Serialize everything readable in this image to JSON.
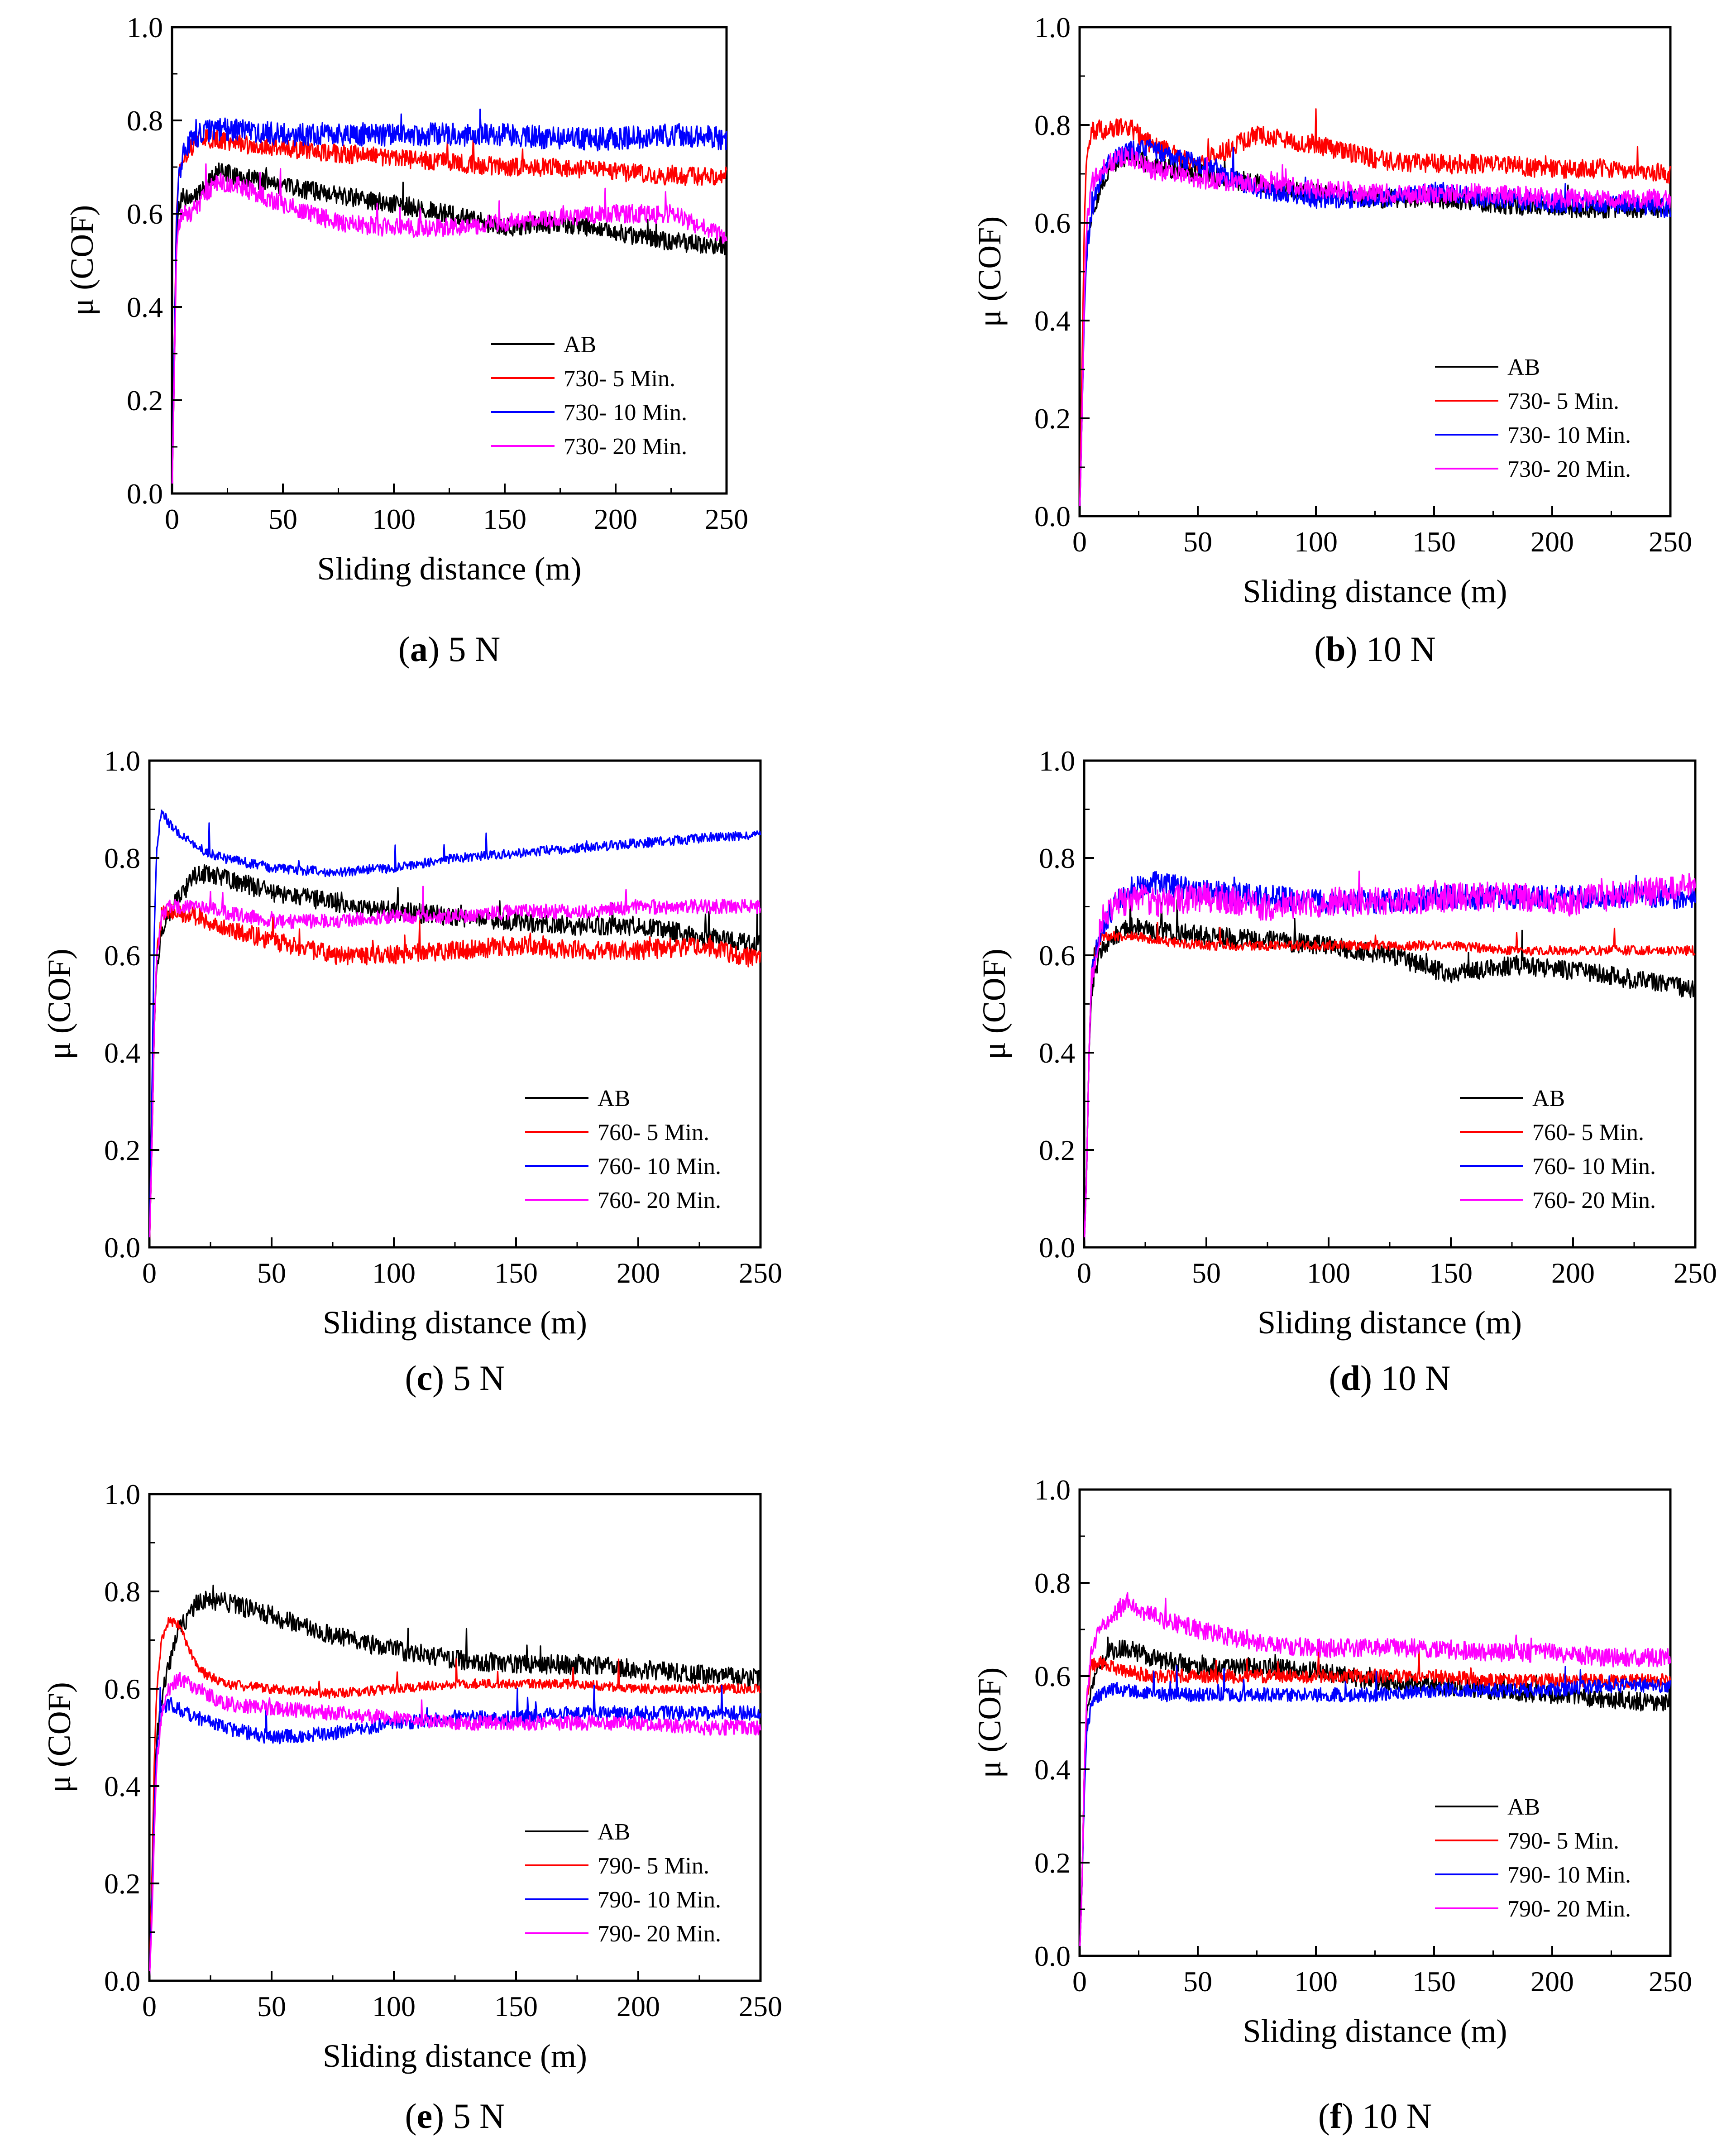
{
  "figure_title": "",
  "chart_data": [
    {
      "panel": "a",
      "caption_letter": "a",
      "caption_text": "5 N",
      "type": "line",
      "title": "",
      "xlabel": "Sliding distance (m)",
      "ylabel": "μ (COF)",
      "xlim": [
        0,
        250
      ],
      "ylim": [
        0.0,
        1.0
      ],
      "xticks": [
        "0",
        "50",
        "100",
        "150",
        "200",
        "250"
      ],
      "yticks": [
        "0.0",
        "0.2",
        "0.4",
        "0.6",
        "0.8",
        "1.0"
      ],
      "legend_position": "bottom-right",
      "x": [
        0,
        1,
        2,
        3,
        5,
        8,
        12,
        20,
        30,
        50,
        75,
        100,
        125,
        150,
        175,
        200,
        225,
        250
      ],
      "series": [
        {
          "name": "AB",
          "color": "#000000",
          "noise": 0.02,
          "values": [
            0,
            0.25,
            0.55,
            0.62,
            0.64,
            0.63,
            0.64,
            0.69,
            0.68,
            0.66,
            0.64,
            0.62,
            0.6,
            0.57,
            0.58,
            0.56,
            0.54,
            0.53
          ]
        },
        {
          "name": "730- 5 Min.",
          "color": "#ff0000",
          "noise": 0.02,
          "values": [
            0,
            0.3,
            0.6,
            0.68,
            0.72,
            0.74,
            0.76,
            0.76,
            0.75,
            0.74,
            0.73,
            0.72,
            0.71,
            0.7,
            0.7,
            0.69,
            0.68,
            0.68
          ]
        },
        {
          "name": "730- 10 Min.",
          "color": "#0000ff",
          "noise": 0.025,
          "values": [
            0,
            0.3,
            0.58,
            0.68,
            0.73,
            0.75,
            0.77,
            0.78,
            0.78,
            0.77,
            0.77,
            0.77,
            0.77,
            0.77,
            0.76,
            0.76,
            0.77,
            0.76
          ]
        },
        {
          "name": "730- 20 Min.",
          "color": "#ff00ff",
          "noise": 0.02,
          "values": [
            0,
            0.25,
            0.52,
            0.58,
            0.6,
            0.6,
            0.62,
            0.67,
            0.66,
            0.62,
            0.58,
            0.57,
            0.57,
            0.58,
            0.59,
            0.6,
            0.6,
            0.55
          ]
        }
      ]
    },
    {
      "panel": "b",
      "caption_letter": "b",
      "caption_text": "10 N",
      "type": "line",
      "title": "",
      "xlabel": "Sliding distance (m)",
      "ylabel": "μ (COF)",
      "xlim": [
        0,
        250
      ],
      "ylim": [
        0.0,
        1.0
      ],
      "xticks": [
        "0",
        "50",
        "100",
        "150",
        "200",
        "250"
      ],
      "yticks": [
        "0.0",
        "0.2",
        "0.4",
        "0.6",
        "0.8",
        "1.0"
      ],
      "legend_position": "bottom-right",
      "x": [
        0,
        1,
        2,
        3,
        5,
        8,
        12,
        20,
        30,
        50,
        75,
        100,
        125,
        150,
        175,
        200,
        225,
        250
      ],
      "series": [
        {
          "name": "AB",
          "color": "#000000",
          "noise": 0.02,
          "values": [
            0,
            0.2,
            0.45,
            0.55,
            0.62,
            0.66,
            0.7,
            0.74,
            0.72,
            0.7,
            0.68,
            0.66,
            0.65,
            0.65,
            0.64,
            0.63,
            0.63,
            0.63
          ]
        },
        {
          "name": "730- 5 Min.",
          "color": "#ff0000",
          "noise": 0.02,
          "values": [
            0,
            0.3,
            0.6,
            0.75,
            0.79,
            0.79,
            0.79,
            0.8,
            0.76,
            0.72,
            0.78,
            0.76,
            0.73,
            0.72,
            0.72,
            0.71,
            0.71,
            0.7
          ]
        },
        {
          "name": "730- 10 Min.",
          "color": "#0000ff",
          "noise": 0.02,
          "values": [
            0,
            0.2,
            0.42,
            0.54,
            0.62,
            0.68,
            0.72,
            0.75,
            0.75,
            0.72,
            0.67,
            0.65,
            0.65,
            0.66,
            0.65,
            0.64,
            0.64,
            0.63
          ]
        },
        {
          "name": "730- 20 Min.",
          "color": "#ff00ff",
          "noise": 0.02,
          "values": [
            0,
            0.2,
            0.45,
            0.6,
            0.68,
            0.7,
            0.72,
            0.74,
            0.71,
            0.69,
            0.68,
            0.67,
            0.66,
            0.66,
            0.66,
            0.65,
            0.65,
            0.65
          ]
        }
      ]
    },
    {
      "panel": "c",
      "caption_letter": "c",
      "caption_text": "5 N",
      "type": "line",
      "title": "",
      "xlabel": "Sliding distance (m)",
      "ylabel": "μ (COF)",
      "xlim": [
        0,
        250
      ],
      "ylim": [
        0.0,
        1.0
      ],
      "xticks": [
        "0",
        "50",
        "100",
        "150",
        "200",
        "250"
      ],
      "yticks": [
        "0.0",
        "0.2",
        "0.4",
        "0.6",
        "0.8",
        "1.0"
      ],
      "legend_position": "bottom-right",
      "x": [
        0,
        1,
        2,
        3,
        5,
        8,
        12,
        20,
        30,
        50,
        75,
        100,
        125,
        150,
        175,
        200,
        225,
        250
      ],
      "series": [
        {
          "name": "AB",
          "color": "#000000",
          "noise": 0.02,
          "values": [
            0,
            0.2,
            0.45,
            0.58,
            0.64,
            0.68,
            0.72,
            0.77,
            0.76,
            0.73,
            0.71,
            0.69,
            0.68,
            0.67,
            0.66,
            0.66,
            0.64,
            0.62
          ]
        },
        {
          "name": "760- 5 Min.",
          "color": "#ff0000",
          "noise": 0.02,
          "values": [
            0,
            0.2,
            0.45,
            0.6,
            0.68,
            0.69,
            0.69,
            0.68,
            0.66,
            0.63,
            0.6,
            0.6,
            0.61,
            0.62,
            0.61,
            0.61,
            0.62,
            0.59
          ]
        },
        {
          "name": "760- 10 Min.",
          "color": "#0000ff",
          "noise": 0.01,
          "values": [
            0,
            0.3,
            0.65,
            0.82,
            0.9,
            0.87,
            0.85,
            0.82,
            0.8,
            0.78,
            0.77,
            0.78,
            0.8,
            0.81,
            0.82,
            0.83,
            0.84,
            0.85
          ]
        },
        {
          "name": "760- 20 Min.",
          "color": "#ff00ff",
          "noise": 0.015,
          "values": [
            0,
            0.2,
            0.45,
            0.6,
            0.68,
            0.7,
            0.7,
            0.7,
            0.69,
            0.67,
            0.67,
            0.68,
            0.68,
            0.69,
            0.69,
            0.7,
            0.7,
            0.7
          ]
        }
      ]
    },
    {
      "panel": "d",
      "caption_letter": "d",
      "caption_text": "10 N",
      "type": "line",
      "title": "",
      "xlabel": "Sliding distance (m)",
      "ylabel": "μ (COF)",
      "xlim": [
        0,
        250
      ],
      "ylim": [
        0.0,
        1.0
      ],
      "xticks": [
        "0",
        "50",
        "100",
        "150",
        "200",
        "250"
      ],
      "yticks": [
        "0.0",
        "0.2",
        "0.4",
        "0.6",
        "0.8",
        "1.0"
      ],
      "legend_position": "bottom-right",
      "x": [
        0,
        1,
        2,
        3,
        5,
        8,
        12,
        20,
        30,
        50,
        75,
        100,
        125,
        150,
        175,
        200,
        225,
        250
      ],
      "series": [
        {
          "name": "AB",
          "color": "#000000",
          "noise": 0.02,
          "values": [
            0,
            0.15,
            0.4,
            0.52,
            0.58,
            0.62,
            0.64,
            0.66,
            0.65,
            0.64,
            0.63,
            0.62,
            0.6,
            0.56,
            0.58,
            0.57,
            0.55,
            0.53
          ]
        },
        {
          "name": "760- 5 Min.",
          "color": "#ff0000",
          "noise": 0.01,
          "values": [
            0,
            0.15,
            0.4,
            0.55,
            0.62,
            0.64,
            0.64,
            0.64,
            0.63,
            0.62,
            0.62,
            0.62,
            0.62,
            0.62,
            0.61,
            0.61,
            0.61,
            0.61
          ]
        },
        {
          "name": "760- 10 Min.",
          "color": "#0000ff",
          "noise": 0.025,
          "values": [
            0,
            0.15,
            0.4,
            0.55,
            0.62,
            0.66,
            0.7,
            0.74,
            0.75,
            0.73,
            0.72,
            0.71,
            0.71,
            0.72,
            0.72,
            0.72,
            0.72,
            0.72
          ]
        },
        {
          "name": "760- 20 Min.",
          "color": "#ff00ff",
          "noise": 0.03,
          "values": [
            0,
            0.15,
            0.4,
            0.55,
            0.62,
            0.68,
            0.7,
            0.72,
            0.71,
            0.72,
            0.7,
            0.71,
            0.71,
            0.72,
            0.72,
            0.71,
            0.73,
            0.74
          ]
        }
      ]
    },
    {
      "panel": "e",
      "caption_letter": "e",
      "caption_text": "5 N",
      "type": "line",
      "title": "",
      "xlabel": "Sliding distance (m)",
      "ylabel": "μ (COF)",
      "xlim": [
        0,
        250
      ],
      "ylim": [
        0.0,
        1.0
      ],
      "xticks": [
        "0",
        "50",
        "100",
        "150",
        "200",
        "250"
      ],
      "yticks": [
        "0.0",
        "0.2",
        "0.4",
        "0.6",
        "0.8",
        "1.0"
      ],
      "legend_position": "bottom-right",
      "x": [
        0,
        1,
        2,
        3,
        5,
        8,
        12,
        20,
        30,
        50,
        75,
        100,
        125,
        150,
        175,
        200,
        225,
        250
      ],
      "series": [
        {
          "name": "AB",
          "color": "#000000",
          "noise": 0.02,
          "values": [
            0,
            0.15,
            0.38,
            0.5,
            0.58,
            0.65,
            0.72,
            0.78,
            0.78,
            0.75,
            0.71,
            0.68,
            0.66,
            0.65,
            0.65,
            0.64,
            0.63,
            0.62
          ]
        },
        {
          "name": "790- 5 Min.",
          "color": "#ff0000",
          "noise": 0.01,
          "values": [
            0,
            0.2,
            0.45,
            0.6,
            0.7,
            0.74,
            0.73,
            0.64,
            0.61,
            0.6,
            0.59,
            0.6,
            0.61,
            0.61,
            0.61,
            0.6,
            0.6,
            0.6
          ]
        },
        {
          "name": "790- 10 Min.",
          "color": "#0000ff",
          "noise": 0.015,
          "values": [
            0,
            0.15,
            0.35,
            0.48,
            0.55,
            0.57,
            0.56,
            0.54,
            0.52,
            0.5,
            0.51,
            0.53,
            0.54,
            0.54,
            0.55,
            0.55,
            0.55,
            0.55
          ]
        },
        {
          "name": "790- 20 Min.",
          "color": "#ff00ff",
          "noise": 0.015,
          "values": [
            0,
            0.12,
            0.3,
            0.45,
            0.55,
            0.6,
            0.62,
            0.6,
            0.57,
            0.56,
            0.55,
            0.54,
            0.53,
            0.53,
            0.53,
            0.53,
            0.52,
            0.52
          ]
        }
      ]
    },
    {
      "panel": "f",
      "caption_letter": "f",
      "caption_text": "10 N",
      "type": "line",
      "title": "",
      "xlabel": "Sliding distance (m)",
      "ylabel": "μ (COF)",
      "xlim": [
        0,
        250
      ],
      "ylim": [
        0.0,
        1.0
      ],
      "xticks": [
        "0",
        "50",
        "100",
        "150",
        "200",
        "250"
      ],
      "yticks": [
        "0.0",
        "0.2",
        "0.4",
        "0.6",
        "0.8",
        "1.0"
      ],
      "legend_position": "bottom-right",
      "x": [
        0,
        1,
        2,
        3,
        5,
        8,
        12,
        20,
        30,
        50,
        75,
        100,
        125,
        150,
        175,
        200,
        225,
        250
      ],
      "series": [
        {
          "name": "AB",
          "color": "#000000",
          "noise": 0.02,
          "values": [
            0,
            0.15,
            0.4,
            0.52,
            0.58,
            0.62,
            0.65,
            0.66,
            0.64,
            0.62,
            0.62,
            0.61,
            0.59,
            0.58,
            0.57,
            0.56,
            0.55,
            0.54
          ]
        },
        {
          "name": "790- 5 Min.",
          "color": "#ff0000",
          "noise": 0.015,
          "values": [
            0,
            0.15,
            0.4,
            0.55,
            0.62,
            0.63,
            0.62,
            0.61,
            0.6,
            0.6,
            0.6,
            0.6,
            0.6,
            0.6,
            0.59,
            0.59,
            0.59,
            0.59
          ]
        },
        {
          "name": "790- 10 Min.",
          "color": "#0000ff",
          "noise": 0.015,
          "values": [
            0,
            0.15,
            0.35,
            0.48,
            0.54,
            0.56,
            0.57,
            0.57,
            0.56,
            0.56,
            0.56,
            0.56,
            0.56,
            0.57,
            0.57,
            0.57,
            0.58,
            0.58
          ]
        },
        {
          "name": "790- 20 Min.",
          "color": "#ff00ff",
          "noise": 0.02,
          "values": [
            0,
            0.15,
            0.4,
            0.55,
            0.65,
            0.7,
            0.72,
            0.76,
            0.73,
            0.7,
            0.67,
            0.66,
            0.66,
            0.66,
            0.65,
            0.65,
            0.64,
            0.64
          ]
        }
      ]
    }
  ]
}
